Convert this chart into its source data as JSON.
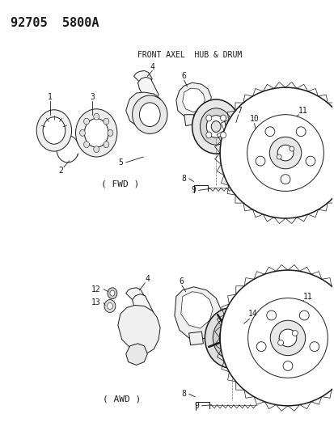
{
  "title_code": "92705  5800A",
  "subtitle": "FRONT AXEL  HUB & DRUM",
  "background_color": "#ffffff",
  "fwd_label": "( FWD )",
  "awd_label": "( AWD )",
  "fig_w": 4.14,
  "fig_h": 5.33,
  "dpi": 100
}
